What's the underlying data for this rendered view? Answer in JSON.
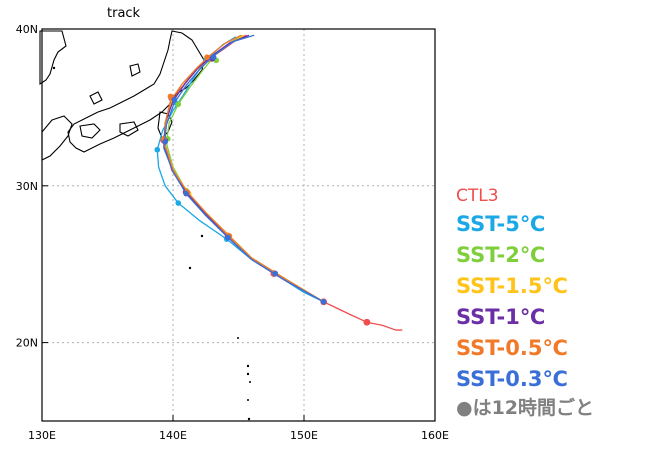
{
  "title": "track",
  "axes": {
    "lon_ticks": [
      "130E",
      "140E",
      "150E",
      "160E"
    ],
    "lat_ticks": [
      "40N",
      "30N",
      "20N"
    ],
    "lon_range": [
      130,
      160
    ],
    "lat_range": [
      15,
      40
    ]
  },
  "legend": [
    {
      "label": "CTL3",
      "color": "#f04d4d"
    },
    {
      "label": "SST-5℃",
      "color": "#1aa8e6"
    },
    {
      "label": "SST-2℃",
      "color": "#7fcf3d"
    },
    {
      "label": "SST-1.5℃",
      "color": "#ffc31a"
    },
    {
      "label": "SST-1℃",
      "color": "#6a2fa6"
    },
    {
      "label": "SST-0.5℃",
      "color": "#f07a2a"
    },
    {
      "label": "SST-0.3℃",
      "color": "#3a6fd8"
    }
  ],
  "note": "●は12時間ごと",
  "chart_data": {
    "type": "line",
    "xlabel": "",
    "ylabel": "",
    "xlim": [
      130,
      160
    ],
    "ylim": [
      15,
      40
    ],
    "grid": true,
    "series": [
      {
        "name": "CTL3",
        "color": "#f04d4d",
        "points": [
          [
            157.5,
            20.8
          ],
          [
            157.0,
            20.8
          ],
          [
            156.0,
            21.1
          ],
          [
            154.8,
            21.3
          ],
          [
            153.5,
            21.8
          ],
          [
            152.5,
            22.2
          ],
          [
            151.5,
            22.6
          ],
          [
            150.0,
            23.3
          ],
          [
            148.5,
            24.0
          ],
          [
            147.7,
            24.4
          ],
          [
            146.0,
            25.3
          ],
          [
            144.2,
            26.8
          ],
          [
            142.5,
            28.2
          ],
          [
            141.0,
            29.6
          ],
          [
            139.9,
            31.0
          ],
          [
            139.3,
            32.9
          ],
          [
            139.5,
            34.2
          ],
          [
            139.9,
            35.6
          ],
          [
            140.8,
            36.4
          ],
          [
            141.7,
            37.4
          ],
          [
            142.8,
            38.1
          ],
          [
            144.0,
            38.8
          ],
          [
            145.0,
            39.4
          ],
          [
            145.6,
            39.6
          ]
        ],
        "dots": [
          [
            154.8,
            21.3
          ],
          [
            151.5,
            22.6
          ],
          [
            147.7,
            24.4
          ],
          [
            144.2,
            26.8
          ],
          [
            141.0,
            29.6
          ],
          [
            139.3,
            32.9
          ],
          [
            139.9,
            35.6
          ],
          [
            142.8,
            38.1
          ]
        ]
      },
      {
        "name": "SST-5℃",
        "color": "#1aa8e6",
        "points": [
          [
            151.5,
            22.6
          ],
          [
            150.0,
            23.2
          ],
          [
            148.3,
            24.1
          ],
          [
            146.0,
            25.3
          ],
          [
            144.1,
            26.6
          ],
          [
            142.0,
            27.8
          ],
          [
            140.4,
            28.9
          ],
          [
            139.4,
            30.0
          ],
          [
            138.9,
            31.2
          ],
          [
            138.8,
            32.3
          ],
          [
            139.2,
            33.5
          ],
          [
            140.0,
            34.8
          ],
          [
            140.8,
            35.8
          ],
          [
            141.6,
            36.9
          ],
          [
            142.5,
            38.0
          ],
          [
            143.8,
            39.0
          ],
          [
            144.8,
            39.5
          ]
        ],
        "dots": [
          [
            151.5,
            22.6
          ],
          [
            147.8,
            24.4
          ],
          [
            144.1,
            26.6
          ],
          [
            140.4,
            28.9
          ],
          [
            138.8,
            32.3
          ],
          [
            140.2,
            35.3
          ],
          [
            142.5,
            38.0
          ]
        ]
      },
      {
        "name": "SST-2℃",
        "color": "#7fcf3d",
        "points": [
          [
            151.5,
            22.6
          ],
          [
            148.5,
            24.1
          ],
          [
            146.0,
            25.4
          ],
          [
            144.3,
            26.8
          ],
          [
            142.5,
            28.3
          ],
          [
            141.0,
            29.7
          ],
          [
            140.0,
            31.2
          ],
          [
            139.5,
            32.7
          ],
          [
            139.7,
            34.0
          ],
          [
            140.4,
            35.2
          ],
          [
            141.3,
            36.3
          ],
          [
            142.3,
            37.4
          ],
          [
            143.3,
            38.4
          ],
          [
            144.5,
            39.2
          ],
          [
            145.3,
            39.6
          ]
        ],
        "dots": [
          [
            151.5,
            22.6
          ],
          [
            147.8,
            24.4
          ],
          [
            144.3,
            26.8
          ],
          [
            141.0,
            29.7
          ],
          [
            139.6,
            33.0
          ],
          [
            140.4,
            35.2
          ],
          [
            143.3,
            38.0
          ]
        ]
      },
      {
        "name": "SST-1.5℃",
        "color": "#ffc31a",
        "points": [
          [
            151.5,
            22.6
          ],
          [
            148.5,
            24.1
          ],
          [
            146.0,
            25.4
          ],
          [
            144.3,
            26.8
          ],
          [
            142.6,
            28.2
          ],
          [
            141.2,
            29.5
          ],
          [
            140.1,
            30.9
          ],
          [
            139.4,
            32.5
          ],
          [
            139.4,
            33.9
          ],
          [
            139.9,
            35.3
          ],
          [
            140.8,
            36.4
          ],
          [
            141.8,
            37.4
          ],
          [
            142.9,
            38.2
          ],
          [
            144.2,
            39.0
          ],
          [
            145.4,
            39.6
          ]
        ],
        "dots": [
          [
            151.5,
            22.6
          ],
          [
            147.8,
            24.4
          ],
          [
            144.3,
            26.8
          ],
          [
            141.2,
            29.5
          ],
          [
            139.4,
            32.8
          ],
          [
            140.0,
            35.5
          ],
          [
            142.9,
            38.1
          ]
        ]
      },
      {
        "name": "SST-1℃",
        "color": "#6a2fa6",
        "points": [
          [
            151.5,
            22.6
          ],
          [
            148.5,
            24.0
          ],
          [
            146.0,
            25.3
          ],
          [
            144.2,
            26.7
          ],
          [
            142.5,
            28.2
          ],
          [
            141.0,
            29.6
          ],
          [
            140.0,
            31.0
          ],
          [
            139.3,
            32.5
          ],
          [
            139.4,
            34.0
          ],
          [
            140.0,
            35.4
          ],
          [
            140.9,
            36.5
          ],
          [
            141.9,
            37.5
          ],
          [
            143.0,
            38.3
          ],
          [
            144.3,
            39.1
          ],
          [
            145.8,
            39.6
          ]
        ],
        "dots": [
          [
            151.5,
            22.6
          ],
          [
            147.8,
            24.4
          ],
          [
            144.2,
            26.7
          ],
          [
            141.0,
            29.6
          ],
          [
            139.4,
            32.9
          ],
          [
            140.0,
            35.6
          ],
          [
            143.0,
            38.1
          ]
        ]
      },
      {
        "name": "SST-0.5℃",
        "color": "#f07a2a",
        "points": [
          [
            151.5,
            22.6
          ],
          [
            148.5,
            24.1
          ],
          [
            146.0,
            25.4
          ],
          [
            144.3,
            26.8
          ],
          [
            142.6,
            28.2
          ],
          [
            141.1,
            29.6
          ],
          [
            140.0,
            31.0
          ],
          [
            139.4,
            32.6
          ],
          [
            139.4,
            34.0
          ],
          [
            139.8,
            35.4
          ],
          [
            140.7,
            36.5
          ],
          [
            141.8,
            37.5
          ],
          [
            142.8,
            38.3
          ],
          [
            144.0,
            39.1
          ],
          [
            145.2,
            39.6
          ]
        ],
        "dots": [
          [
            151.5,
            22.6
          ],
          [
            147.8,
            24.4
          ],
          [
            144.3,
            26.8
          ],
          [
            141.1,
            29.6
          ],
          [
            139.3,
            33.0
          ],
          [
            139.8,
            35.7
          ],
          [
            142.6,
            38.2
          ]
        ]
      },
      {
        "name": "SST-0.3℃",
        "color": "#3a6fd8",
        "points": [
          [
            151.5,
            22.6
          ],
          [
            148.5,
            24.0
          ],
          [
            146.0,
            25.3
          ],
          [
            144.2,
            26.7
          ],
          [
            142.5,
            28.1
          ],
          [
            141.0,
            29.5
          ],
          [
            140.0,
            30.9
          ],
          [
            139.3,
            32.4
          ],
          [
            139.5,
            33.9
          ],
          [
            140.1,
            35.3
          ],
          [
            141.0,
            36.4
          ],
          [
            142.0,
            37.4
          ],
          [
            143.1,
            38.3
          ],
          [
            144.6,
            39.2
          ],
          [
            146.2,
            39.6
          ]
        ],
        "dots": [
          [
            151.5,
            22.6
          ],
          [
            147.8,
            24.4
          ],
          [
            144.2,
            26.7
          ],
          [
            141.0,
            29.5
          ],
          [
            139.4,
            32.8
          ],
          [
            140.1,
            35.5
          ],
          [
            143.1,
            38.2
          ]
        ]
      }
    ]
  }
}
